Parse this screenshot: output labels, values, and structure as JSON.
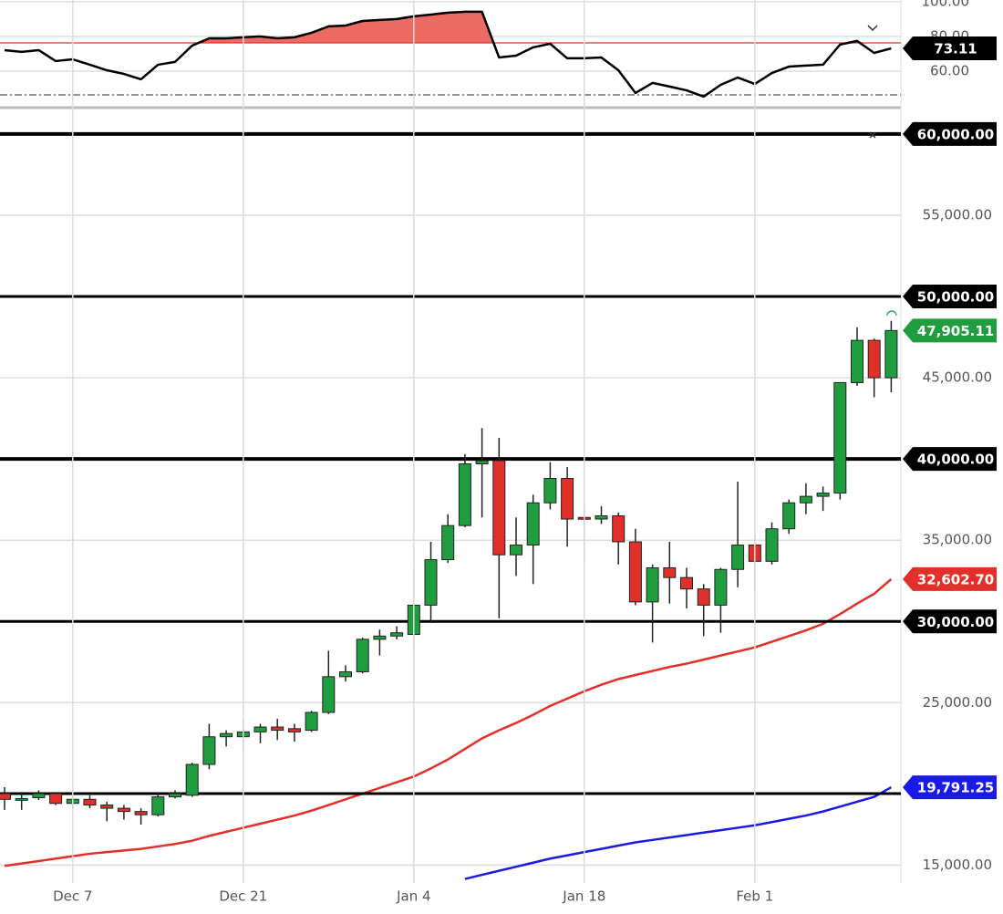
{
  "chart_data": {
    "type": "candlestick",
    "categories": [
      null,
      null,
      null,
      null,
      "Dec 7",
      null,
      null,
      null,
      null,
      null,
      null,
      null,
      null,
      null,
      "Dec 21",
      null,
      null,
      null,
      null,
      null,
      null,
      null,
      null,
      null,
      "Jan 4",
      null,
      null,
      null,
      null,
      null,
      null,
      null,
      null,
      null,
      "Jan 18",
      null,
      null,
      null,
      null,
      null,
      null,
      null,
      null,
      null,
      "Feb 1",
      null,
      null,
      null,
      null,
      null,
      null,
      null,
      null
    ],
    "open": [
      19400,
      19050,
      19150,
      19400,
      18800,
      19050,
      18700,
      18500,
      18300,
      18100,
      19200,
      19300,
      21200,
      22900,
      22900,
      23200,
      23500,
      23400,
      23300,
      24400,
      26600,
      26900,
      28900,
      29100,
      29200,
      31000,
      33800,
      35900,
      39700,
      39900,
      34100,
      34700,
      37300,
      38800,
      36400,
      36300,
      36500,
      34900,
      31200,
      33300,
      32700,
      32000,
      31000,
      33200,
      34700,
      33700,
      35700,
      37300,
      37700,
      37900,
      44700,
      47300,
      45000
    ],
    "high": [
      19800,
      19500,
      19600,
      19500,
      19500,
      19300,
      18900,
      18700,
      18500,
      19400,
      19600,
      21300,
      23700,
      23300,
      24000,
      23700,
      24000,
      23700,
      24500,
      28200,
      27300,
      29000,
      29500,
      29700,
      33300,
      34900,
      36600,
      40300,
      41900,
      41300,
      36400,
      37800,
      39800,
      39500,
      37300,
      37100,
      36700,
      35700,
      33500,
      34900,
      33300,
      32300,
      33300,
      38600,
      35300,
      36100,
      37500,
      38500,
      38300,
      44700,
      48100,
      47400,
      48500
    ],
    "low": [
      18400,
      18400,
      19000,
      18700,
      18500,
      18500,
      17700,
      17800,
      17500,
      18000,
      19100,
      19200,
      20900,
      22300,
      22000,
      22500,
      22700,
      22600,
      23200,
      24300,
      26300,
      26800,
      27900,
      28900,
      28100,
      29900,
      33600,
      35800,
      36400,
      30200,
      32800,
      32300,
      36900,
      34600,
      33600,
      36000,
      33500,
      31000,
      28700,
      31100,
      30800,
      29100,
      29300,
      32100,
      31900,
      33500,
      35400,
      36600,
      36800,
      37500,
      44500,
      43800,
      44100
    ],
    "close": [
      19050,
      19100,
      19400,
      18800,
      19050,
      18700,
      18500,
      18300,
      18100,
      19200,
      19400,
      21200,
      22900,
      23100,
      23200,
      23500,
      23300,
      23200,
      24400,
      26600,
      26900,
      28900,
      29100,
      29300,
      31000,
      33800,
      35900,
      39700,
      39900,
      34100,
      34700,
      37300,
      38800,
      36300,
      36300,
      36500,
      34900,
      31200,
      33300,
      32700,
      32000,
      31000,
      33200,
      34700,
      33700,
      35700,
      37300,
      37700,
      37900,
      44700,
      47300,
      45000,
      47905.11
    ],
    "up_color": "#1f9d3f",
    "down_color": "#e1302a",
    "ylim": [
      13900,
      61400
    ],
    "yticks": [
      {
        "value": 15000,
        "label": "15,000.00"
      },
      {
        "value": 25000,
        "label": "25,000.00"
      },
      {
        "value": 35000,
        "label": "35,000.00"
      },
      {
        "value": 45000,
        "label": "45,000.00"
      },
      {
        "value": 55000,
        "label": "55,000.00"
      }
    ],
    "grid": true,
    "levels": [
      {
        "value": 60000,
        "label": "60,000.00",
        "width": 4
      },
      {
        "value": 50000,
        "label": "50,000.00",
        "width": 3
      },
      {
        "value": 40000,
        "label": "40,000.00",
        "width": 4
      },
      {
        "value": 30000,
        "label": "30,000.00",
        "width": 3
      },
      {
        "value": 19400,
        "width": 3
      }
    ],
    "moving_averages": [
      {
        "color": "#e1302a",
        "values": [
          14950,
          15100,
          15250,
          15400,
          15550,
          15700,
          15800,
          15900,
          16000,
          16150,
          16300,
          16500,
          16800,
          17050,
          17300,
          17550,
          17800,
          18050,
          18350,
          18700,
          19050,
          19400,
          19750,
          20100,
          20450,
          20950,
          21500,
          22150,
          22800,
          23300,
          23750,
          24250,
          24800,
          25250,
          25700,
          26100,
          26450,
          26700,
          26950,
          27200,
          27400,
          27650,
          27900,
          28150,
          28400,
          28750,
          29100,
          29450,
          29850,
          30450,
          31100,
          31700,
          32602.7
        ]
      },
      {
        "color": "#1a1ae6",
        "values": [
          null,
          null,
          null,
          null,
          null,
          null,
          null,
          null,
          null,
          null,
          null,
          null,
          null,
          null,
          null,
          null,
          null,
          null,
          null,
          null,
          null,
          null,
          null,
          null,
          null,
          null,
          null,
          14150,
          14400,
          14650,
          14900,
          15150,
          15400,
          15600,
          15800,
          16000,
          16200,
          16400,
          16550,
          16700,
          16850,
          17000,
          17150,
          17300,
          17450,
          17650,
          17850,
          18050,
          18300,
          18600,
          18900,
          19200,
          19791.25
        ]
      }
    ],
    "price_tags": [
      {
        "value": 47905.11,
        "label": "47,905.11",
        "color": "#1f9d3f"
      },
      {
        "value": 32602.7,
        "label": "32,602.70",
        "color": "#e1302a"
      },
      {
        "value": 19791.25,
        "label": "19,791.25",
        "color": "#1a1ae6"
      }
    ],
    "indicator": {
      "ylim": [
        40,
        101
      ],
      "yticks": [
        {
          "value": 100,
          "label": "100.00"
        },
        {
          "value": 80,
          "label": "80.00"
        },
        {
          "value": 60,
          "label": "60.00"
        }
      ],
      "values": [
        72.1,
        71.1,
        72.1,
        65.8,
        66.8,
        63.7,
        60.5,
        58.4,
        55.3,
        63.7,
        65.3,
        74.7,
        78.9,
        78.9,
        79.5,
        80,
        78.9,
        79.5,
        82.1,
        85.8,
        86.3,
        88.9,
        89.5,
        90,
        91.6,
        92.6,
        93.7,
        94.2,
        94.2,
        67.9,
        68.9,
        73.7,
        75.8,
        67.4,
        67.4,
        67.9,
        60.5,
        47.4,
        53.2,
        51.1,
        48.9,
        45.3,
        52.1,
        56.3,
        52.6,
        58.9,
        62.6,
        63.2,
        63.7,
        75.3,
        77.4,
        70.5,
        73.11
      ],
      "color": "#000000",
      "fill_color": "#ec6b63",
      "overbought": 76.3,
      "overbought_color": "#e1302a",
      "oversold": 46.3,
      "last_tag": {
        "value": 73.11,
        "label": "73.11"
      }
    }
  }
}
